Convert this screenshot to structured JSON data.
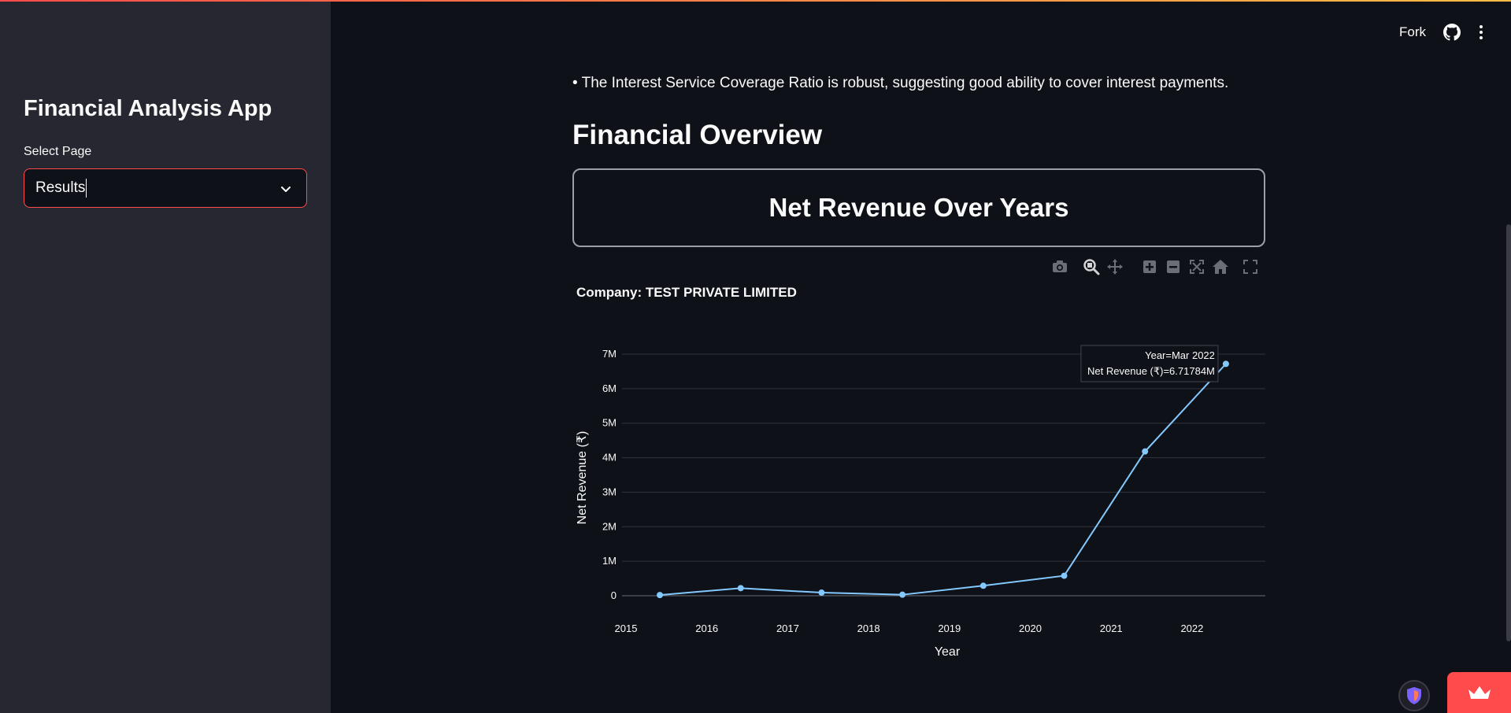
{
  "sidebar": {
    "app_title": "Financial Analysis App",
    "select_label": "Select Page",
    "select_value": "Results"
  },
  "header": {
    "fork_label": "Fork",
    "icons": [
      "github-icon",
      "more-vertical-icon"
    ]
  },
  "main": {
    "bullet_text": "• The Interest Service Coverage Ratio is robust, suggesting good ability to cover interest payments.",
    "section_title": "Financial Overview",
    "box_title": "Net Revenue Over Years"
  },
  "toolbar": {
    "icons": [
      "camera-icon",
      "zoom-icon",
      "pan-icon",
      "zoom-in-icon",
      "zoom-out-icon",
      "autoscale-icon",
      "reset-axes-icon",
      "fullscreen-icon"
    ]
  },
  "chart_data": {
    "type": "line",
    "title": "Company: TEST PRIVATE LIMITED",
    "xlabel": "Year",
    "ylabel": "Net Revenue (₹)",
    "x_ticks": [
      "2015",
      "2016",
      "2017",
      "2018",
      "2019",
      "2020",
      "2021",
      "2022"
    ],
    "y_ticks": [
      "0",
      "1M",
      "2M",
      "3M",
      "4M",
      "5M",
      "6M",
      "7M"
    ],
    "ylim": [
      0,
      7000000
    ],
    "x": [
      "Mar 2015",
      "Mar 2016",
      "Mar 2017",
      "Mar 2018",
      "Mar 2019",
      "Mar 2020",
      "Mar 2021",
      "Mar 2022"
    ],
    "values": [
      20000,
      220000,
      90000,
      30000,
      290000,
      580000,
      4180000,
      6717840
    ],
    "series_color": "#83c9ff",
    "grid": true,
    "tooltip": {
      "line1": "Year=Mar 2022",
      "line2": "Net Revenue (₹)=6.71784M"
    }
  }
}
